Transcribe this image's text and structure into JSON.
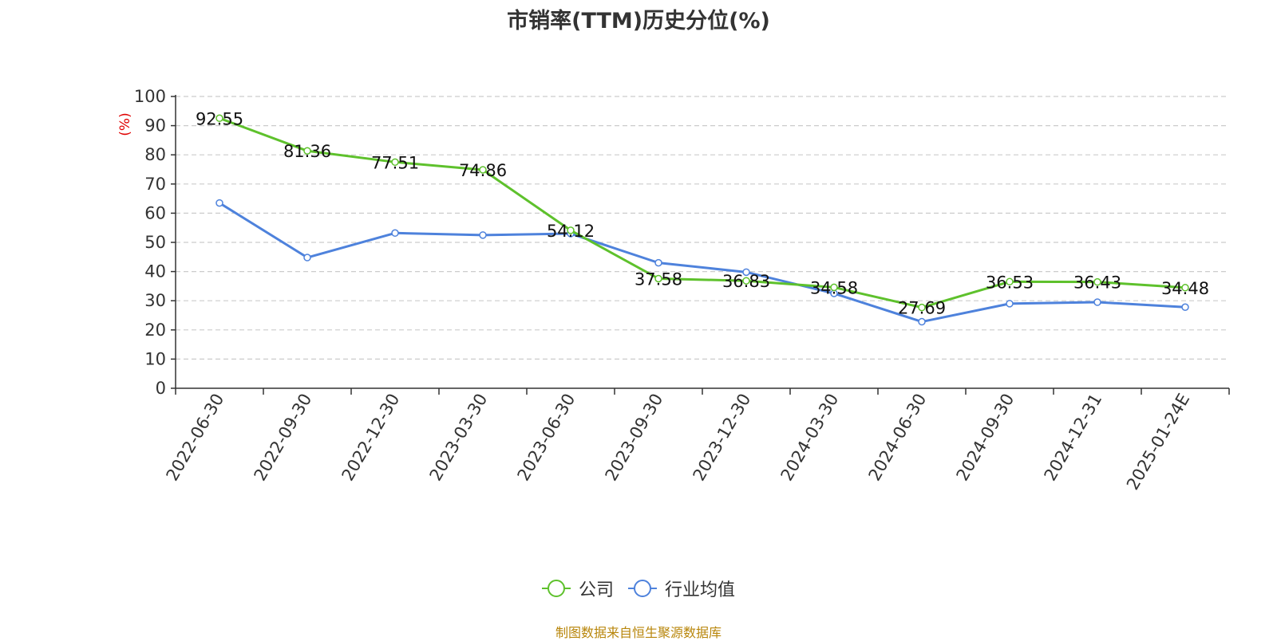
{
  "title": "市销率(TTM)历史分位(%)",
  "source_note": "制图数据来自恒生聚源数据库",
  "colors": {
    "company": "#5ec12c",
    "industry": "#4e82dc",
    "grid": "#cccccc",
    "axis": "#333333",
    "ylabel": "#e00000",
    "source": "#b8860b"
  },
  "chart_data": {
    "type": "line",
    "title": "市销率(TTM)历史分位(%)",
    "xlabel": "",
    "ylabel": "(%)",
    "ylim": [
      0,
      100
    ],
    "yticks": [
      0,
      10,
      20,
      30,
      40,
      50,
      60,
      70,
      80,
      90,
      100
    ],
    "grid": true,
    "legend": "bottom-center",
    "categories": [
      "2022-06-30",
      "2022-09-30",
      "2022-12-30",
      "2023-03-30",
      "2023-06-30",
      "2023-09-30",
      "2023-12-30",
      "2024-03-30",
      "2024-06-30",
      "2024-09-30",
      "2024-12-31",
      "2025-01-24E"
    ],
    "series": [
      {
        "name": "公司",
        "values": [
          92.55,
          81.36,
          77.51,
          74.86,
          54.12,
          37.58,
          36.83,
          34.58,
          27.69,
          36.53,
          36.43,
          34.48
        ],
        "labels": [
          "92.55",
          "81.36",
          "77.51",
          "74.86",
          "54.12",
          "37.58",
          "36.83",
          "34.58",
          "27.69",
          "36.53",
          "36.43",
          "34.48"
        ]
      },
      {
        "name": "行业均值",
        "values": [
          63.5,
          44.8,
          53.2,
          52.5,
          53.0,
          43.0,
          39.8,
          32.5,
          22.8,
          29.0,
          29.5,
          27.8
        ]
      }
    ]
  }
}
